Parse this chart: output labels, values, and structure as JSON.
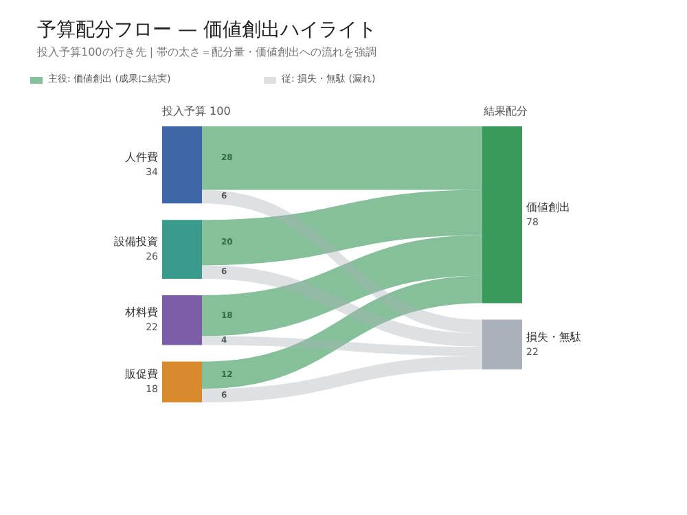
{
  "chart_data": {
    "type": "other",
    "title": "予算配分フロー — 価値創出ハイライト",
    "subtitle": "投入予算100の行き先 | 帯の太さ＝配分量・価値創出への流れを強調",
    "categories": [
      "人件費",
      "設備投資",
      "材料費",
      "販促費"
    ],
    "values": [
      34,
      26,
      22,
      18
    ],
    "colors": [
      "#3f67a8",
      "#3a9a8c",
      "#7b5ea7",
      "#d98a2e"
    ],
    "series": [
      {
        "name": "主役: 価値創出 (成果に結実)",
        "color": "#3a9a5c",
        "values": [
          28,
          20,
          18,
          12
        ]
      },
      {
        "name": "従: 損失・無駄 (漏れ)",
        "color": "#a9b0b9",
        "values": [
          6,
          6,
          4,
          6
        ]
      }
    ],
    "totals": [
      "78",
      "22"
    ],
    "data_labels": true,
    "legend": "top left",
    "annotations": [
      "投入予算 100",
      "結果配分",
      "価値創出",
      "損失・無駄"
    ]
  }
}
